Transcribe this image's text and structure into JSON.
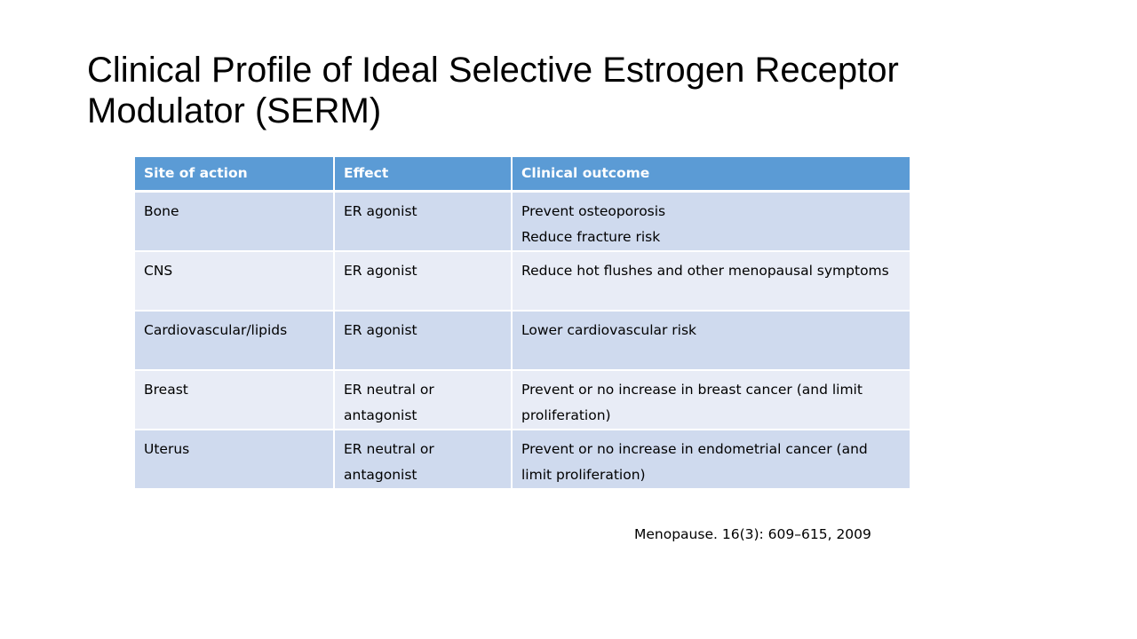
{
  "slide": {
    "title": "Clinical Profile of Ideal Selective Estrogen Receptor Modulator (SERM)",
    "citation": "Menopause.  16(3): 609–615, 2009"
  },
  "table": {
    "headers": [
      "Site of action",
      "Effect",
      "Clinical outcome"
    ],
    "rows": [
      {
        "site": "Bone",
        "effect": "ER agonist",
        "outcome_lines": [
          "Prevent osteoporosis",
          "Reduce fracture risk"
        ]
      },
      {
        "site": "CNS",
        "effect": "ER agonist",
        "outcome_lines": [
          "Reduce hot flushes and other menopausal symptoms"
        ]
      },
      {
        "site": "Cardiovascular/lipids",
        "effect": "ER agonist",
        "outcome_lines": [
          "Lower cardiovascular risk"
        ]
      },
      {
        "site": "Breast",
        "effect": "ER neutral or antagonist",
        "outcome_lines": [
          "Prevent or no increase in breast cancer (and limit proliferation)"
        ]
      },
      {
        "site": "Uterus",
        "effect": "ER neutral or antagonist",
        "outcome_lines": [
          "Prevent or no increase in endometrial cancer (and limit proliferation)"
        ]
      }
    ]
  },
  "colors": {
    "header_bg": "#5b9bd5",
    "row_odd": "#cfdaee",
    "row_even": "#e8ecf6"
  }
}
